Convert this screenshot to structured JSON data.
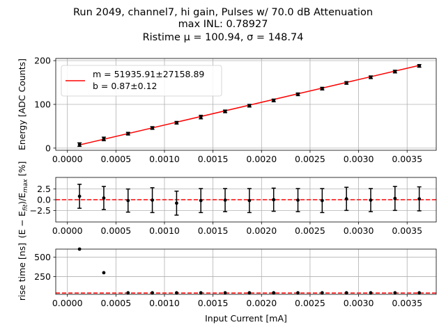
{
  "chart_data": {
    "title_lines": [
      "Run 2049, channel7, hi gain, Pulses w/ 70.0 dB Attenuation",
      "max INL: 0.78927",
      "Ristime μ = 100.94, σ = 148.74"
    ],
    "shared_x": {
      "label": "Input Current [mA]",
      "lim": [
        -0.00012,
        0.0038
      ],
      "ticks": [
        "0.0000",
        "0.0005",
        "0.0010",
        "0.0015",
        "0.0020",
        "0.0025",
        "0.0030",
        "0.0035"
      ],
      "tick_values": [
        0,
        0.0005,
        0.001,
        0.0015,
        0.002,
        0.0025,
        0.003,
        0.0035
      ]
    },
    "x": [
      0.000125,
      0.000375,
      0.000625,
      0.000875,
      0.001125,
      0.001375,
      0.001625,
      0.001875,
      0.002125,
      0.002375,
      0.002625,
      0.002875,
      0.003125,
      0.003375,
      0.003625
    ],
    "panels": [
      {
        "type": "scatter",
        "ylabel": "Energy [ADC Counts]",
        "ylim": [
          -5,
          205
        ],
        "yticks": [
          0,
          100,
          200
        ],
        "y": [
          8,
          21,
          33,
          46,
          58,
          71,
          84,
          97,
          109,
          123,
          136,
          149,
          162,
          175,
          188
        ],
        "yerr": [
          4,
          4,
          3,
          3,
          3,
          4,
          3,
          3,
          3,
          3,
          3,
          3,
          3,
          3,
          3
        ],
        "fit": {
          "m": 51935.91,
          "b": 0.87,
          "color": "#ff0000"
        },
        "legend": {
          "entry": [
            "m = 51935.91±27158.89",
            "b = 0.87±0.12"
          ],
          "loc": "upper-left"
        },
        "grid": true
      },
      {
        "type": "scatter",
        "ylabel": "$(E-E_{fit})/E_{max}$ [%]",
        "ylabel_parts": [
          "(E − E",
          "fit",
          ")/E",
          "max",
          " [%]"
        ],
        "ylim": [
          -5.2,
          5.2
        ],
        "yticks": [
          -2.5,
          0.0,
          2.5
        ],
        "ytick_labels": [
          "−2.5",
          "0.0",
          "2.5"
        ],
        "y": [
          0.8,
          0.4,
          -0.2,
          -0.1,
          -0.8,
          -0.2,
          -0.1,
          -0.2,
          0.0,
          -0.1,
          -0.2,
          0.2,
          -0.1,
          0.3,
          0.2
        ],
        "yerr": [
          2.8,
          2.7,
          2.7,
          2.9,
          2.8,
          2.8,
          2.7,
          2.8,
          2.7,
          2.7,
          2.8,
          2.7,
          2.7,
          2.8,
          2.8
        ],
        "hline": {
          "y": 0,
          "style": "dashed",
          "color": "#ff0000"
        },
        "grid": true
      },
      {
        "type": "scatter",
        "ylabel": "rise time [ns]",
        "ylim": [
          20,
          605
        ],
        "yticks": [
          250,
          500
        ],
        "y": [
          605,
          300,
          40,
          40,
          40,
          40,
          40,
          40,
          40,
          40,
          40,
          40,
          40,
          40,
          40
        ],
        "hline": {
          "y": 37,
          "style": "dashed",
          "color": "#ff0000"
        },
        "grid": true
      }
    ]
  }
}
